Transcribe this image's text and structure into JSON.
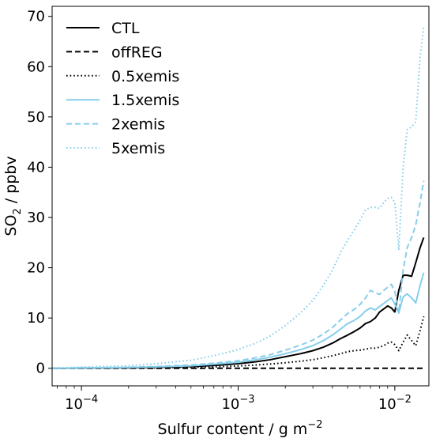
{
  "chart_data": {
    "type": "line",
    "title": "",
    "xlabel": "Sulfur content / g m",
    "xlabel_superscript": "−2",
    "ylabel_main": "SO",
    "ylabel_subscript": "2",
    "ylabel_unit": " / ppbv",
    "xscale": "log",
    "xlim": [
      6.5e-05,
      0.0165
    ],
    "ylim": [
      -3.5,
      72
    ],
    "grid": false,
    "legend_position": "top-left",
    "yticks": [
      {
        "value": 0,
        "label": "0"
      },
      {
        "value": 10,
        "label": "10"
      },
      {
        "value": 20,
        "label": "20"
      },
      {
        "value": 30,
        "label": "30"
      },
      {
        "value": 40,
        "label": "40"
      },
      {
        "value": 50,
        "label": "50"
      },
      {
        "value": 60,
        "label": "60"
      },
      {
        "value": 70,
        "label": "70"
      }
    ],
    "xticks": [
      {
        "value": 0.0001,
        "base": "10",
        "exp": "−4"
      },
      {
        "value": 0.001,
        "base": "10",
        "exp": "−3"
      },
      {
        "value": 0.01,
        "base": "10",
        "exp": "−2"
      }
    ],
    "x": [
      6.5e-05,
      0.0001,
      0.0002,
      0.0003,
      0.0005,
      0.0007,
      0.001,
      0.0013,
      0.0016,
      0.002,
      0.0025,
      0.003,
      0.0035,
      0.004,
      0.0045,
      0.005,
      0.0055,
      0.006,
      0.0065,
      0.007,
      0.0075,
      0.008,
      0.0085,
      0.009,
      0.0095,
      0.01,
      0.0106,
      0.0113,
      0.012,
      0.0128,
      0.0136,
      0.0145,
      0.0153
    ],
    "series": [
      {
        "name": "CTL",
        "color": "#000000",
        "dash": "solid",
        "values": [
          0,
          0.05,
          0.1,
          0.2,
          0.35,
          0.55,
          0.9,
          1.3,
          1.7,
          2.3,
          2.9,
          3.5,
          4.2,
          5.0,
          5.9,
          6.6,
          7.3,
          8.0,
          8.9,
          9.3,
          10.0,
          11.2,
          11.8,
          12.4,
          12.0,
          11.2,
          15.5,
          18.5,
          18.5,
          18.3,
          21.0,
          24.0,
          26.0
        ]
      },
      {
        "name": "offREG",
        "color": "#000000",
        "dash": "dashed",
        "values": [
          0,
          0,
          0,
          0,
          0,
          0,
          0,
          0,
          0,
          0,
          0,
          0,
          0,
          0,
          0,
          0,
          0,
          0,
          0,
          0,
          0,
          0,
          0,
          0,
          0,
          0,
          0,
          0,
          0,
          0,
          0,
          0,
          0
        ]
      },
      {
        "name": "0.5xemis",
        "color": "#000000",
        "dash": "dotted",
        "values": [
          0,
          0.03,
          0.06,
          0.1,
          0.18,
          0.28,
          0.45,
          0.65,
          0.85,
          1.1,
          1.4,
          1.7,
          2.1,
          2.5,
          2.9,
          3.3,
          3.5,
          3.6,
          3.8,
          4.0,
          4.0,
          4.2,
          4.5,
          5.0,
          5.2,
          4.7,
          3.5,
          5.2,
          6.6,
          5.5,
          4.5,
          7.5,
          10.3
        ]
      },
      {
        "name": "1.5xemis",
        "color": "#87ceeb",
        "dash": "solid",
        "values": [
          0,
          0.07,
          0.15,
          0.28,
          0.5,
          0.8,
          1.2,
          1.7,
          2.2,
          2.9,
          3.7,
          4.5,
          5.5,
          6.6,
          7.8,
          8.9,
          9.5,
          10.3,
          11.4,
          12.0,
          11.6,
          12.3,
          12.9,
          13.5,
          14.0,
          12.8,
          11.0,
          14.2,
          14.8,
          14.0,
          13.0,
          16.5,
          19.0
        ]
      },
      {
        "name": "2xemis",
        "color": "#87ceeb",
        "dash": "dashed",
        "values": [
          0,
          0.1,
          0.2,
          0.35,
          0.65,
          1.0,
          1.5,
          2.1,
          2.7,
          3.6,
          4.6,
          5.6,
          6.8,
          8.1,
          9.6,
          10.9,
          11.7,
          12.7,
          14.0,
          15.5,
          15.0,
          14.7,
          15.5,
          16.1,
          16.7,
          15.3,
          11.0,
          19.5,
          24.0,
          26.0,
          28.5,
          33.0,
          37.3
        ]
      },
      {
        "name": "5xemis",
        "color": "#87ceeb",
        "dash": "dotted",
        "values": [
          0,
          0.25,
          0.5,
          0.9,
          1.6,
          2.5,
          3.7,
          5.0,
          6.4,
          8.5,
          11.0,
          13.5,
          16.5,
          19.5,
          23.0,
          25.5,
          27.5,
          29.5,
          31.5,
          32.0,
          32.0,
          31.8,
          33.0,
          33.8,
          34.0,
          33.0,
          23.5,
          40.0,
          47.5,
          48.0,
          49.0,
          62.0,
          68.0
        ]
      }
    ]
  }
}
